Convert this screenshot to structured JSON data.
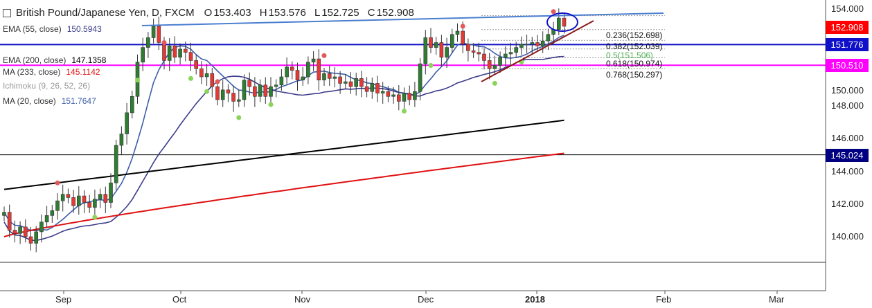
{
  "header": {
    "symbol": "British Pound/Japanese Yen, D, FXCM",
    "open_label": "O",
    "open": "153.403",
    "high_label": "H",
    "high": "153.576",
    "low_label": "L",
    "low": "152.725",
    "close_label": "C",
    "close": "152.908"
  },
  "indicators": [
    {
      "label": "EMA (55, close)",
      "value": "150.5943",
      "color": "#3b3b8a"
    },
    {
      "label": "",
      "value": "",
      "color": "#9bbbe0"
    },
    {
      "label": "EMA (200, close)",
      "value": "147.1358",
      "color": "#000000"
    },
    {
      "label": "MA (233, close)",
      "value": "145.1142",
      "color": "#e01010"
    },
    {
      "label": "Ichimoku (9, 26, 52, 26)",
      "value": "",
      "color": "#aaaaaa"
    },
    {
      "label": "MA (20, close)",
      "value": "151.7647",
      "color": "#3d5ea8"
    }
  ],
  "price_tags": {
    "last": {
      "text": "152.908",
      "color": "#ff0000"
    },
    "level_blue": {
      "text": "151.776",
      "color": "#1010c8"
    },
    "level_magenta": {
      "text": "150.510",
      "color": "#ff00ff"
    },
    "level_black": {
      "text": "145.024",
      "color": "#000080"
    }
  },
  "fib_levels": [
    {
      "label": "0.236(152.698)",
      "price": 152.698,
      "color": "#111111"
    },
    {
      "label": "0.382(152.039)",
      "price": 152.039,
      "color": "#111111"
    },
    {
      "label": "0.5(151.506)",
      "price": 151.506,
      "color": "#4caf50"
    },
    {
      "label": "0.618(150.974)",
      "price": 150.974,
      "color": "#111111"
    },
    {
      "label": "0.768(150.297)",
      "price": 150.297,
      "color": "#111111"
    }
  ],
  "chart_data": {
    "type": "candlestick",
    "title": "British Pound/Japanese Yen, D, FXCM",
    "x_tick_labels": [
      "Sep",
      "Oct",
      "Nov",
      "Dec",
      "2018",
      "Feb",
      "Mar"
    ],
    "y_tick_labels": [
      "154.000",
      "152.000",
      "150.000",
      "148.000",
      "146.000",
      "144.000",
      "142.000",
      "140.000"
    ],
    "ylim": [
      138.2,
      154.6
    ],
    "horizontal_levels": [
      151.776,
      150.51,
      145.024
    ],
    "colors": {
      "up": "#2e7d32",
      "down": "#e53935",
      "ema55": "#3b3b8a",
      "ma20": "#3d5ea8",
      "ema200": "#000000",
      "ma233": "#e01010",
      "level_blue": "#1010c8",
      "level_magenta": "#ff00ff",
      "trend_top": "#4a7fd0",
      "trend_up": "#8b1a1a"
    },
    "candles_close": [
      141.5,
      140.4,
      140.2,
      140.6,
      140.0,
      139.6,
      140.3,
      140.9,
      141.3,
      141.6,
      142.2,
      142.6,
      142.4,
      141.9,
      142.5,
      142.1,
      141.8,
      142.3,
      142.6,
      142.1,
      143.3,
      145.6,
      146.3,
      147.6,
      148.6,
      150.7,
      151.6,
      152.2,
      152.9,
      151.9,
      150.8,
      151.7,
      151.0,
      151.5,
      151.3,
      150.8,
      150.3,
      149.8,
      150.0,
      149.2,
      148.4,
      149.0,
      148.8,
      148.3,
      148.4,
      149.6,
      149.2,
      148.6,
      149.3,
      148.6,
      149.2,
      149.3,
      149.8,
      150.4,
      150.2,
      149.6,
      149.8,
      150.7,
      150.9,
      149.6,
      150.0,
      149.7,
      149.8,
      149.4,
      149.5,
      149.2,
      149.7,
      149.2,
      148.9,
      149.4,
      148.8,
      148.9,
      148.6,
      148.7,
      148.3,
      148.8,
      148.4,
      148.9,
      150.6,
      152.2,
      151.6,
      151.9,
      151.0,
      151.6,
      152.4,
      152.6,
      151.8,
      151.4,
      151.3,
      151.2,
      150.8,
      150.3,
      150.5,
      151.0,
      151.2,
      151.3,
      151.6,
      151.8,
      151.8,
      151.9,
      151.7,
      152.0,
      152.4,
      152.7,
      153.4,
      152.9
    ],
    "moving_averages": {
      "ema55_end": 150.5943,
      "ma20_end": 151.7647,
      "ema200_end": 147.1358,
      "ma233_end": 145.1142
    },
    "ichimoku_cloud": "not visible",
    "grid": false,
    "legend": "top-left"
  }
}
